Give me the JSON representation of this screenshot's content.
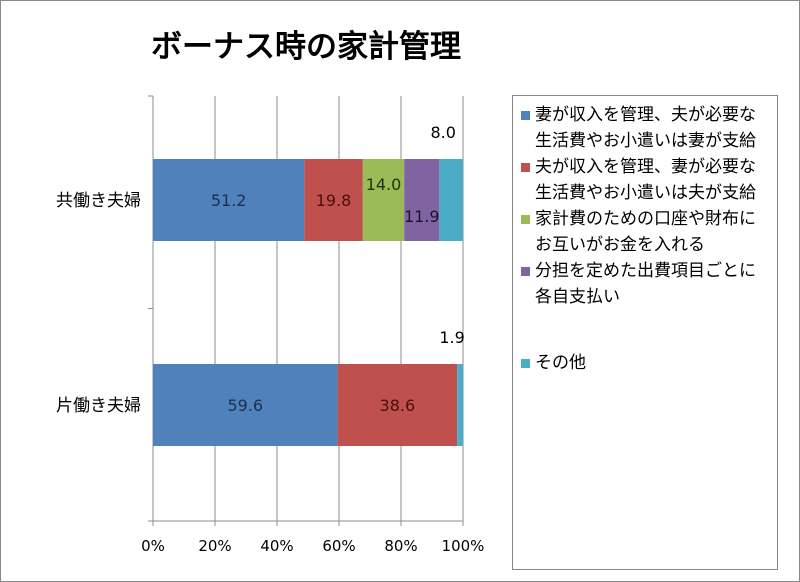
{
  "chart_data": {
    "type": "bar",
    "orientation": "horizontal",
    "stacked": "percent",
    "title": "ボーナス時の家計管理",
    "categories": [
      "共働き夫婦",
      "片働き夫婦"
    ],
    "series": [
      {
        "name": "妻が収入を管理、夫が必要な生活費やお小遣いは妻が支給",
        "color": "#4f81bd",
        "values": [
          51.2,
          59.6
        ],
        "labels": [
          "51.2",
          "59.6"
        ]
      },
      {
        "name": "夫が収入を管理、妻が必要な生活費やお小遣いは夫が支給",
        "color": "#c0504d",
        "values": [
          19.8,
          38.6
        ],
        "labels": [
          "19.8",
          "38.6"
        ]
      },
      {
        "name": "家計費のための口座や財布にお互いがお金を入れる",
        "color": "#9bbb59",
        "values": [
          14.0,
          0
        ],
        "labels": [
          "14.0",
          ""
        ]
      },
      {
        "name": "分担を定めた出費項目ごとに各自支払い",
        "color": "#8064a2",
        "values": [
          11.9,
          0
        ],
        "labels": [
          "11.9",
          ""
        ]
      },
      {
        "name": "その他",
        "color": "#4bacc6",
        "values": [
          8.0,
          1.9
        ],
        "labels": [
          "8.0",
          "1.9"
        ]
      }
    ],
    "xticks": [
      "0%",
      "20%",
      "40%",
      "60%",
      "80%",
      "100%"
    ],
    "xlim": [
      0,
      100
    ],
    "grid": "vertical",
    "legend": "right"
  }
}
